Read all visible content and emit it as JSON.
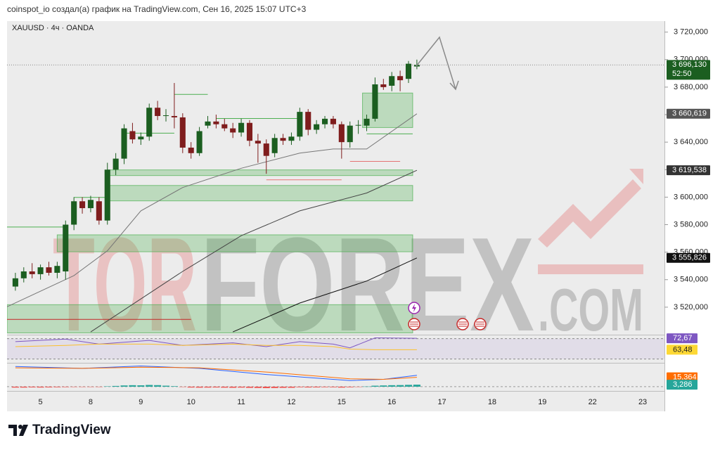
{
  "header": {
    "text": "coinspot_io создал(а) график на TradingView.com, Сен 16, 2025 15:07 UTC+3"
  },
  "chart_data": {
    "type": "candlestick",
    "title": "XAUUSD · 4ч · OANDA",
    "open": [
      3535,
      3541,
      3546,
      3544,
      3549,
      3545,
      3546,
      3580,
      3597,
      3592,
      3597,
      3583,
      3620,
      3628,
      3648,
      3642,
      3644,
      3665,
      3659,
      3659,
      3658,
      3636,
      3632,
      3652,
      3655,
      3653,
      3650,
      3647,
      3654,
      3641,
      3639,
      3632,
      3643,
      3641,
      3644,
      3662,
      3649,
      3653,
      3657,
      3653,
      3640,
      3652,
      3652,
      3657,
      3682,
      3681,
      3688,
      3686,
      3695
    ],
    "high": [
      3545,
      3549,
      3552,
      3551,
      3553,
      3553,
      3583,
      3600,
      3600,
      3601,
      3600,
      3625,
      3632,
      3653,
      3654,
      3647,
      3668,
      3670,
      3664,
      3683,
      3661,
      3640,
      3651,
      3659,
      3660,
      3657,
      3654,
      3657,
      3656,
      3646,
      3642,
      3646,
      3646,
      3647,
      3665,
      3664,
      3656,
      3659,
      3659,
      3655,
      3655,
      3656,
      3660,
      3687,
      3686,
      3691,
      3692,
      3699,
      3700
    ],
    "low": [
      3532,
      3538,
      3541,
      3540,
      3543,
      3541,
      3540,
      3576,
      3588,
      3589,
      3580,
      3580,
      3616,
      3624,
      3639,
      3638,
      3641,
      3656,
      3655,
      3650,
      3632,
      3628,
      3630,
      3650,
      3650,
      3648,
      3643,
      3644,
      3637,
      3625,
      3617,
      3629,
      3638,
      3638,
      3641,
      3645,
      3646,
      3650,
      3650,
      3628,
      3636,
      3646,
      3648,
      3655,
      3678,
      3677,
      3677,
      3683,
      3693
    ],
    "close": [
      3541,
      3546,
      3544,
      3549,
      3545,
      3550,
      3580,
      3597,
      3592,
      3598,
      3583,
      3620,
      3628,
      3650,
      3642,
      3644,
      3665,
      3659,
      3659.5,
      3658,
      3636,
      3632,
      3648,
      3655,
      3653,
      3650,
      3647,
      3654,
      3641,
      3639,
      3630,
      3643,
      3641,
      3644,
      3662,
      3649,
      3653,
      3657,
      3653,
      3640,
      3652,
      3652.5,
      3657,
      3682,
      3680,
      3688,
      3685,
      3697,
      3696.13
    ],
    "up_color": "#1b5e20",
    "down_color": "#7f1d1d",
    "xlim": [
      -1,
      77.6
    ],
    "xticks": [
      {
        "value": 3,
        "label": "5"
      },
      {
        "value": 9,
        "label": "8"
      },
      {
        "value": 15,
        "label": "9"
      },
      {
        "value": 21,
        "label": "10"
      },
      {
        "value": 27,
        "label": "11"
      },
      {
        "value": 33,
        "label": "12"
      },
      {
        "value": 39,
        "label": "15"
      },
      {
        "value": 45,
        "label": "16"
      },
      {
        "value": 51,
        "label": "17"
      },
      {
        "value": 57,
        "label": "18"
      },
      {
        "value": 63,
        "label": "19"
      },
      {
        "value": 69,
        "label": "22"
      },
      {
        "value": 75,
        "label": "23"
      }
    ],
    "ylim": [
      3500,
      3728
    ],
    "yticks": [
      {
        "value": 3520,
        "label": "3 520,000"
      },
      {
        "value": 3540,
        "label": "3 540,000"
      },
      {
        "value": 3560,
        "label": "3 560,000"
      },
      {
        "value": 3580,
        "label": "3 580,000"
      },
      {
        "value": 3600,
        "label": "3 600,000"
      },
      {
        "value": 3620,
        "label": "3 620,000"
      },
      {
        "value": 3640,
        "label": "3 640,000"
      },
      {
        "value": 3660,
        "label": "3 660,000"
      },
      {
        "value": 3680,
        "label": "3 680,000"
      },
      {
        "value": 3700,
        "label": "3 700,000"
      },
      {
        "value": 3720,
        "label": "3 720,000"
      }
    ],
    "series": [
      {
        "color": "#777777",
        "x": [
          -1,
          7,
          11,
          15,
          20,
          27,
          34,
          38,
          42,
          48
        ],
        "values": [
          3520.3,
          3543,
          3561,
          3590,
          3607,
          3621,
          3632,
          3635,
          3635,
          3660.619
        ]
      },
      {
        "color": "#444444",
        "x": [
          9,
          13,
          20,
          27,
          34,
          42,
          48
        ],
        "values": [
          3502,
          3518,
          3546,
          3572,
          3590,
          3603,
          3619.538
        ]
      },
      {
        "color": "#111111",
        "x": [
          26,
          34,
          42,
          48
        ],
        "values": [
          3502,
          3523,
          3539,
          3555.826
        ]
      }
    ],
    "price_labels": [
      {
        "value": 3696.13,
        "label": "3 696,130",
        "color": "#1b5e20"
      },
      {
        "value": 3660.619,
        "label": "3 660,619",
        "color": "#555555"
      },
      {
        "value": 3619.538,
        "label": "3 619,538",
        "color": "#333333"
      },
      {
        "value": 3555.826,
        "label": "3 555,826",
        "color": "#111111"
      }
    ],
    "countdown": "52:50",
    "zone_color": "#4caf50",
    "zones": [
      {
        "x": [
          41.5,
          47.5
        ],
        "y": [
          3650.6,
          3675.7
        ]
      },
      {
        "x": [
          11,
          47.5
        ],
        "y": [
          3615.7,
          3619.8
        ]
      },
      {
        "x": [
          11,
          47.5
        ],
        "y": [
          3597.3,
          3608.5
        ]
      },
      {
        "x": [
          5,
          47.5
        ],
        "y": [
          3560.3,
          3572.6
        ]
      },
      {
        "x": [
          -1,
          47.5
        ],
        "y": [
          3501.3,
          3521.8
        ]
      }
    ],
    "levels": [
      {
        "x": [
          19,
          23
        ],
        "value": 3674.7,
        "color": "#4caf50"
      },
      {
        "x": [
          13,
          19
        ],
        "value": 3646.5,
        "color": "#4caf50"
      },
      {
        "x": [
          24,
          34
        ],
        "value": 3657.2,
        "color": "#4caf50"
      },
      {
        "x": [
          42,
          47.5
        ],
        "value": 3646,
        "color": "#4caf50"
      },
      {
        "x": [
          40,
          46
        ],
        "value": 3626,
        "color": "#e57373"
      },
      {
        "x": [
          30,
          39
        ],
        "value": 3612.6,
        "color": "#e57373"
      },
      {
        "x": [
          -1,
          21
        ],
        "value": 3511.1,
        "color": "#c62828"
      },
      {
        "x": [
          -1,
          6
        ],
        "value": 3578.3,
        "color": "#4caf50"
      },
      {
        "x": [
          7,
          11
        ],
        "value": 3599.8,
        "color": "#4caf50"
      }
    ],
    "watermark": [
      "TOR",
      "FOREX",
      ".COM"
    ]
  },
  "rsi": {
    "ylim": [
      53,
      75
    ],
    "band": [
      56,
      72.4
    ],
    "series": [
      {
        "color": "#7e57c2",
        "x": [
          0,
          6,
          10,
          16,
          20,
          26,
          30,
          34,
          38,
          40,
          43,
          48
        ],
        "values": [
          70,
          72,
          68,
          71,
          67,
          69,
          66,
          70,
          68,
          65,
          73,
          72.67
        ]
      },
      {
        "color": "#fbc02d",
        "x": [
          0,
          6,
          10,
          16,
          20,
          26,
          30,
          34,
          38,
          40,
          43,
          48
        ],
        "values": [
          66,
          67,
          68,
          68,
          67,
          68,
          67,
          67,
          66,
          64,
          63.5,
          63.48
        ]
      }
    ],
    "labels": [
      {
        "value": 72.67,
        "label": "72,67",
        "color": "#7e57c2"
      },
      {
        "value": 63.48,
        "label": "63,48",
        "color": "#fdd835"
      }
    ]
  },
  "macd": {
    "ylim": [
      -7,
      38
    ],
    "histogram": [
      -1.5,
      -1.5,
      -1.2,
      -1.4,
      -1.2,
      -1.0,
      -0.8,
      -0.6,
      -0.5,
      -0.3,
      -0.4,
      0.5,
      1.2,
      2.0,
      2.4,
      2.2,
      2.8,
      2.5,
      1.6,
      0.8,
      -0.5,
      -1.4,
      -1.6,
      -1.5,
      -1.3,
      -1.6,
      -1.8,
      -1.5,
      -1.9,
      -2.1,
      -2.4,
      -2.2,
      -1.9,
      -1.8,
      -1.0,
      -1.3,
      -1.2,
      -0.9,
      -1.0,
      -1.5,
      -1.0,
      -0.5,
      0.3,
      1.6,
      2.0,
      2.4,
      2.6,
      3.0,
      3.286
    ],
    "pos_color": "#26a69a",
    "neg_color": "#ef5350",
    "series": [
      {
        "color": "#2962ff",
        "x": [
          0,
          8,
          15,
          22,
          30,
          40,
          44,
          48
        ],
        "values": [
          33,
          30,
          34,
          30,
          20,
          10,
          12,
          18.649
        ]
      },
      {
        "color": "#ff6d00",
        "x": [
          0,
          8,
          15,
          22,
          30,
          40,
          44,
          48
        ],
        "values": [
          31,
          30,
          32,
          31,
          24,
          13,
          12,
          15.364
        ]
      }
    ],
    "labels": [
      {
        "value": 15.364,
        "label": "15,364",
        "color": "#ff6d00"
      },
      {
        "value": 3.286,
        "label": "3,286",
        "color": "#26a69a"
      }
    ]
  },
  "footer": {
    "brand": "TradingView"
  }
}
